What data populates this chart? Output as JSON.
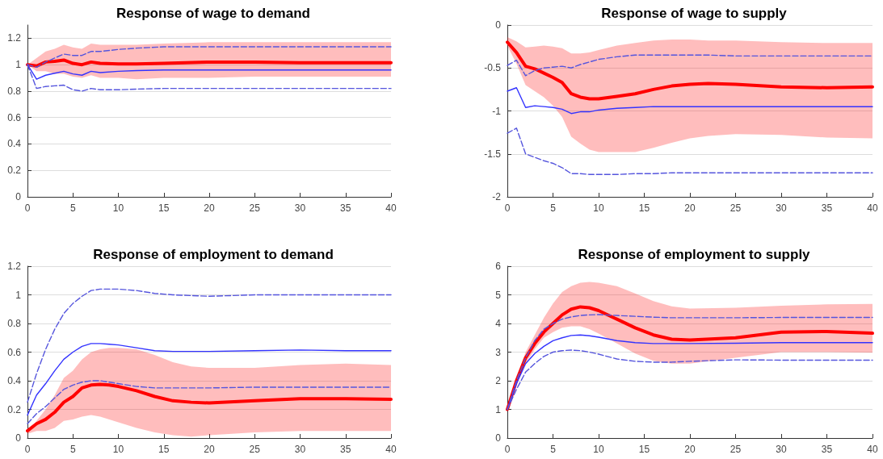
{
  "chart_data": [
    {
      "type": "line",
      "title": "Response of wage to demand",
      "x": [
        0,
        1,
        2,
        3,
        4,
        5,
        6,
        7,
        8,
        10,
        12,
        15,
        20,
        25,
        30,
        35,
        40
      ],
      "xlim": [
        0,
        40
      ],
      "xticks": [
        0,
        5,
        10,
        15,
        20,
        25,
        30,
        35,
        40
      ],
      "ylim": [
        0,
        1.3
      ],
      "yticks": [
        0,
        0.2,
        0.4,
        0.6,
        0.8,
        1,
        1.2
      ],
      "grid": "y",
      "marker": "none",
      "series": [
        {
          "color": "#ff0000",
          "values": [
            1,
            0.99,
            1.02,
            1.025,
            1.035,
            1.01,
            1.0,
            1.02,
            1.01,
            1.005,
            1.005,
            1.01,
            1.02,
            1.02,
            1.015,
            1.015,
            1.015
          ],
          "upper": [
            1,
            1.05,
            1.1,
            1.12,
            1.15,
            1.13,
            1.12,
            1.16,
            1.15,
            1.15,
            1.15,
            1.16,
            1.17,
            1.17,
            1.17,
            1.17,
            1.17
          ],
          "lower": [
            1,
            0.95,
            0.95,
            0.93,
            0.93,
            0.91,
            0.9,
            0.92,
            0.9,
            0.9,
            0.89,
            0.9,
            0.9,
            0.91,
            0.91,
            0.91,
            0.91
          ]
        },
        {
          "color": "#3333ff",
          "values": [
            1,
            0.89,
            0.92,
            0.935,
            0.95,
            0.93,
            0.92,
            0.95,
            0.94,
            0.95,
            0.955,
            0.96,
            0.96,
            0.96,
            0.96,
            0.96,
            0.96
          ]
        },
        {
          "color": "#5555dd",
          "line_style": "dashed",
          "values": [
            1,
            0.98,
            1.02,
            1.05,
            1.08,
            1.07,
            1.07,
            1.1,
            1.1,
            1.115,
            1.125,
            1.135,
            1.135,
            1.135,
            1.135,
            1.135,
            1.135
          ]
        },
        {
          "color": "#5555dd",
          "line_style": "dashed",
          "values": [
            1,
            0.82,
            0.835,
            0.84,
            0.845,
            0.81,
            0.8,
            0.82,
            0.81,
            0.81,
            0.815,
            0.82,
            0.82,
            0.82,
            0.82,
            0.82,
            0.82
          ]
        }
      ]
    },
    {
      "type": "line",
      "title": "Response of wage to supply",
      "x": [
        0,
        1,
        2,
        3,
        4,
        5,
        6,
        7,
        8,
        9,
        10,
        12,
        14,
        16,
        18,
        20,
        22,
        25,
        30,
        35,
        40
      ],
      "xlim": [
        0,
        40
      ],
      "xticks": [
        0,
        5,
        10,
        15,
        20,
        25,
        30,
        35,
        40
      ],
      "ylim": [
        -2,
        0
      ],
      "yticks": [
        -2,
        -1.5,
        -1,
        -0.5,
        0
      ],
      "grid": "y",
      "marker": "none",
      "series": [
        {
          "color": "#ff0000",
          "values": [
            -0.2,
            -0.32,
            -0.48,
            -0.51,
            -0.56,
            -0.61,
            -0.67,
            -0.8,
            -0.84,
            -0.86,
            -0.86,
            -0.83,
            -0.8,
            -0.75,
            -0.71,
            -0.69,
            -0.68,
            -0.69,
            -0.72,
            -0.73,
            -0.72
          ],
          "upper": [
            -0.14,
            -0.19,
            -0.26,
            -0.25,
            -0.24,
            -0.25,
            -0.27,
            -0.33,
            -0.33,
            -0.32,
            -0.29,
            -0.24,
            -0.21,
            -0.18,
            -0.17,
            -0.17,
            -0.18,
            -0.18,
            -0.2,
            -0.21,
            -0.21
          ],
          "lower": [
            -0.24,
            -0.45,
            -0.7,
            -0.77,
            -0.84,
            -0.94,
            -1.07,
            -1.3,
            -1.38,
            -1.45,
            -1.48,
            -1.48,
            -1.48,
            -1.43,
            -1.37,
            -1.32,
            -1.29,
            -1.27,
            -1.28,
            -1.31,
            -1.32
          ]
        },
        {
          "color": "#3333ff",
          "values": [
            -0.77,
            -0.73,
            -0.96,
            -0.94,
            -0.95,
            -0.96,
            -0.98,
            -1.03,
            -1.01,
            -1.01,
            -0.99,
            -0.97,
            -0.96,
            -0.95,
            -0.95,
            -0.95,
            -0.95,
            -0.95,
            -0.95,
            -0.95,
            -0.95
          ]
        },
        {
          "color": "#5555dd",
          "line_style": "dashed",
          "values": [
            -0.47,
            -0.41,
            -0.59,
            -0.53,
            -0.5,
            -0.49,
            -0.48,
            -0.5,
            -0.46,
            -0.43,
            -0.4,
            -0.37,
            -0.35,
            -0.35,
            -0.35,
            -0.35,
            -0.35,
            -0.36,
            -0.36,
            -0.36,
            -0.36
          ]
        },
        {
          "color": "#5555dd",
          "line_style": "dashed",
          "values": [
            -1.26,
            -1.2,
            -1.5,
            -1.54,
            -1.58,
            -1.61,
            -1.66,
            -1.73,
            -1.73,
            -1.74,
            -1.74,
            -1.74,
            -1.73,
            -1.73,
            -1.72,
            -1.72,
            -1.72,
            -1.72,
            -1.72,
            -1.72,
            -1.72
          ]
        }
      ]
    },
    {
      "type": "line",
      "title": "Response of employment to demand",
      "x": [
        0,
        1,
        2,
        3,
        4,
        5,
        6,
        7,
        8,
        9,
        10,
        12,
        14,
        16,
        18,
        20,
        25,
        30,
        35,
        40
      ],
      "xlim": [
        0,
        40
      ],
      "xticks": [
        0,
        5,
        10,
        15,
        20,
        25,
        30,
        35,
        40
      ],
      "ylim": [
        0,
        1.2
      ],
      "yticks": [
        0,
        0.2,
        0.4,
        0.6,
        0.8,
        1,
        1.2
      ],
      "grid": "y",
      "marker": "none",
      "series": [
        {
          "color": "#ff0000",
          "values": [
            0.05,
            0.1,
            0.13,
            0.18,
            0.25,
            0.29,
            0.35,
            0.37,
            0.375,
            0.37,
            0.36,
            0.33,
            0.29,
            0.26,
            0.25,
            0.245,
            0.26,
            0.275,
            0.275,
            0.27
          ],
          "upper": [
            0.03,
            0.12,
            0.2,
            0.3,
            0.42,
            0.47,
            0.55,
            0.6,
            0.62,
            0.63,
            0.63,
            0.62,
            0.58,
            0.53,
            0.5,
            0.49,
            0.49,
            0.51,
            0.52,
            0.51
          ],
          "lower": [
            0.03,
            0.05,
            0.05,
            0.07,
            0.12,
            0.13,
            0.15,
            0.16,
            0.15,
            0.13,
            0.11,
            0.07,
            0.04,
            0.02,
            0.01,
            0.02,
            0.04,
            0.05,
            0.05,
            0.05
          ]
        },
        {
          "color": "#3333ff",
          "values": [
            0.16,
            0.3,
            0.38,
            0.47,
            0.55,
            0.6,
            0.64,
            0.66,
            0.66,
            0.655,
            0.65,
            0.63,
            0.61,
            0.605,
            0.605,
            0.605,
            0.61,
            0.615,
            0.61,
            0.61
          ]
        },
        {
          "color": "#5555dd",
          "line_style": "dashed",
          "values": [
            0.25,
            0.45,
            0.62,
            0.76,
            0.87,
            0.94,
            0.99,
            1.03,
            1.04,
            1.04,
            1.04,
            1.03,
            1.01,
            1.0,
            0.995,
            0.99,
            1.0,
            1.0,
            1.0,
            1.0
          ]
        },
        {
          "color": "#5555dd",
          "line_style": "dashed",
          "values": [
            0.1,
            0.17,
            0.22,
            0.28,
            0.34,
            0.37,
            0.39,
            0.4,
            0.4,
            0.39,
            0.38,
            0.36,
            0.35,
            0.35,
            0.35,
            0.35,
            0.355,
            0.355,
            0.355,
            0.355
          ]
        }
      ]
    },
    {
      "type": "line",
      "title": "Response of employment to supply",
      "x": [
        0,
        1,
        2,
        3,
        4,
        5,
        6,
        7,
        8,
        9,
        10,
        12,
        14,
        16,
        18,
        20,
        25,
        30,
        35,
        40
      ],
      "xlim": [
        0,
        40
      ],
      "xticks": [
        0,
        5,
        10,
        15,
        20,
        25,
        30,
        35,
        40
      ],
      "ylim": [
        0,
        6
      ],
      "yticks": [
        0,
        1,
        2,
        3,
        4,
        5,
        6
      ],
      "grid": "y",
      "marker": "none",
      "series": [
        {
          "color": "#ff0000",
          "values": [
            1,
            2,
            2.8,
            3.3,
            3.7,
            4.0,
            4.3,
            4.5,
            4.58,
            4.55,
            4.45,
            4.15,
            3.85,
            3.6,
            3.45,
            3.42,
            3.5,
            3.7,
            3.72,
            3.66
          ],
          "upper": [
            1,
            2.1,
            3.0,
            3.6,
            4.2,
            4.7,
            5.1,
            5.3,
            5.42,
            5.45,
            5.42,
            5.3,
            5.05,
            4.78,
            4.6,
            4.52,
            4.55,
            4.62,
            4.67,
            4.68
          ],
          "lower": [
            1,
            1.9,
            2.6,
            3.1,
            3.5,
            3.7,
            3.85,
            3.9,
            3.9,
            3.8,
            3.65,
            3.3,
            2.95,
            2.7,
            2.6,
            2.6,
            2.8,
            3.0,
            3.0,
            2.98
          ]
        },
        {
          "color": "#3333ff",
          "values": [
            1,
            1.9,
            2.6,
            2.95,
            3.2,
            3.4,
            3.5,
            3.58,
            3.6,
            3.57,
            3.52,
            3.4,
            3.33,
            3.3,
            3.3,
            3.3,
            3.31,
            3.33,
            3.33,
            3.33
          ]
        },
        {
          "color": "#5555dd",
          "line_style": "dashed",
          "values": [
            1,
            2.0,
            2.8,
            3.4,
            3.8,
            4.0,
            4.15,
            4.23,
            4.28,
            4.3,
            4.31,
            4.28,
            4.25,
            4.22,
            4.2,
            4.2,
            4.2,
            4.21,
            4.21,
            4.21
          ]
        },
        {
          "color": "#5555dd",
          "line_style": "dashed",
          "values": [
            1,
            1.7,
            2.3,
            2.6,
            2.85,
            3.0,
            3.05,
            3.07,
            3.05,
            3.0,
            2.93,
            2.76,
            2.68,
            2.65,
            2.65,
            2.68,
            2.73,
            2.72,
            2.72,
            2.72
          ]
        }
      ]
    }
  ]
}
